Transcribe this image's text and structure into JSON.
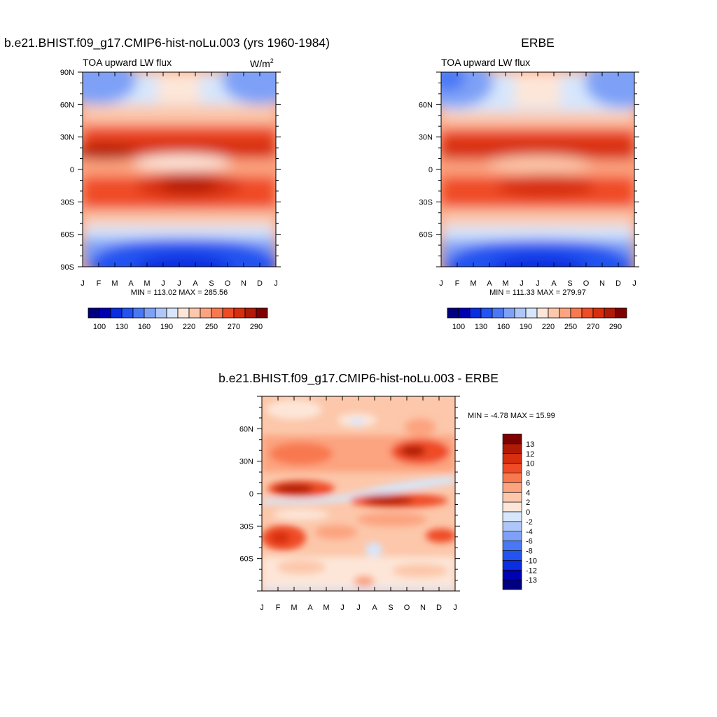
{
  "panels": [
    {
      "title": "b.e21.BHIST.f09_g17.CMIP6-hist-noLu.003 (yrs 1960-1984)",
      "subtitle": "TOA upward LW flux",
      "units_base": "W/m",
      "units_exp": "2",
      "stats": "MIN = 113.02 MAX = 285.56"
    },
    {
      "title": "ERBE",
      "subtitle": "TOA upward LW flux",
      "stats": "MIN = 111.33 MAX = 279.97"
    },
    {
      "title": "b.e21.BHIST.f09_g17.CMIP6-hist-noLu.003 - ERBE",
      "stats": "MIN =  -4.78 MAX =  15.99"
    }
  ],
  "chart_data": [
    {
      "type": "heatmap",
      "title": "b.e21.BHIST.f09_g17.CMIP6-hist-noLu.003 (yrs 1960-1984)",
      "subtitle": "TOA upward LW flux",
      "units": "W/m2",
      "x": [
        "J",
        "F",
        "M",
        "A",
        "M",
        "J",
        "J",
        "A",
        "S",
        "O",
        "N",
        "D",
        "J"
      ],
      "y_ticks": [
        "90N",
        "60N",
        "30N",
        "0",
        "30S",
        "60S",
        "90S"
      ],
      "colorbar_labels": [
        "100",
        "130",
        "160",
        "190",
        "220",
        "250",
        "270",
        "290"
      ],
      "colorbar_levels": [
        100,
        115,
        130,
        145,
        160,
        175,
        190,
        205,
        220,
        235,
        250,
        260,
        270,
        280,
        290
      ],
      "min": 113.02,
      "max": 285.56,
      "colormap": [
        "#000080",
        "#0000b3",
        "#0a2de0",
        "#2353f0",
        "#4a78f5",
        "#7ea1f7",
        "#aec6f8",
        "#d7e6fb",
        "#fde6d8",
        "#fcc7aa",
        "#fca37f",
        "#f8794f",
        "#ef4b25",
        "#d72e0e",
        "#b01a06",
        "#7f0000"
      ]
    },
    {
      "type": "heatmap",
      "title": "ERBE",
      "subtitle": "TOA upward LW flux",
      "x": [
        "J",
        "F",
        "M",
        "A",
        "M",
        "J",
        "J",
        "A",
        "S",
        "O",
        "N",
        "D",
        "J"
      ],
      "y_ticks": [
        "60N",
        "30N",
        "0",
        "30S",
        "60S"
      ],
      "colorbar_labels": [
        "100",
        "130",
        "160",
        "190",
        "220",
        "250",
        "270",
        "290"
      ],
      "min": 111.33,
      "max": 279.97
    },
    {
      "type": "heatmap",
      "title": "b.e21.BHIST.f09_g17.CMIP6-hist-noLu.003 - ERBE",
      "x": [
        "J",
        "F",
        "M",
        "A",
        "M",
        "J",
        "J",
        "A",
        "S",
        "O",
        "N",
        "D",
        "J"
      ],
      "y_ticks": [
        "60N",
        "30N",
        "0",
        "30S",
        "60S"
      ],
      "colorbar_labels": [
        "13",
        "12",
        "10",
        "8",
        "6",
        "4",
        "2",
        "0",
        "-2",
        "-4",
        "-6",
        "-8",
        "-10",
        "-12",
        "-13"
      ],
      "colormap": [
        "#7f0000",
        "#b01a06",
        "#d72e0e",
        "#ef4b25",
        "#f8794f",
        "#fca37f",
        "#fcc7aa",
        "#fde6d8",
        "#d7e6fb",
        "#aec6f8",
        "#7ea1f7",
        "#4a78f5",
        "#2353f0",
        "#0a2de0",
        "#0000b3",
        "#000080"
      ],
      "min": -4.78,
      "max": 15.99
    }
  ]
}
